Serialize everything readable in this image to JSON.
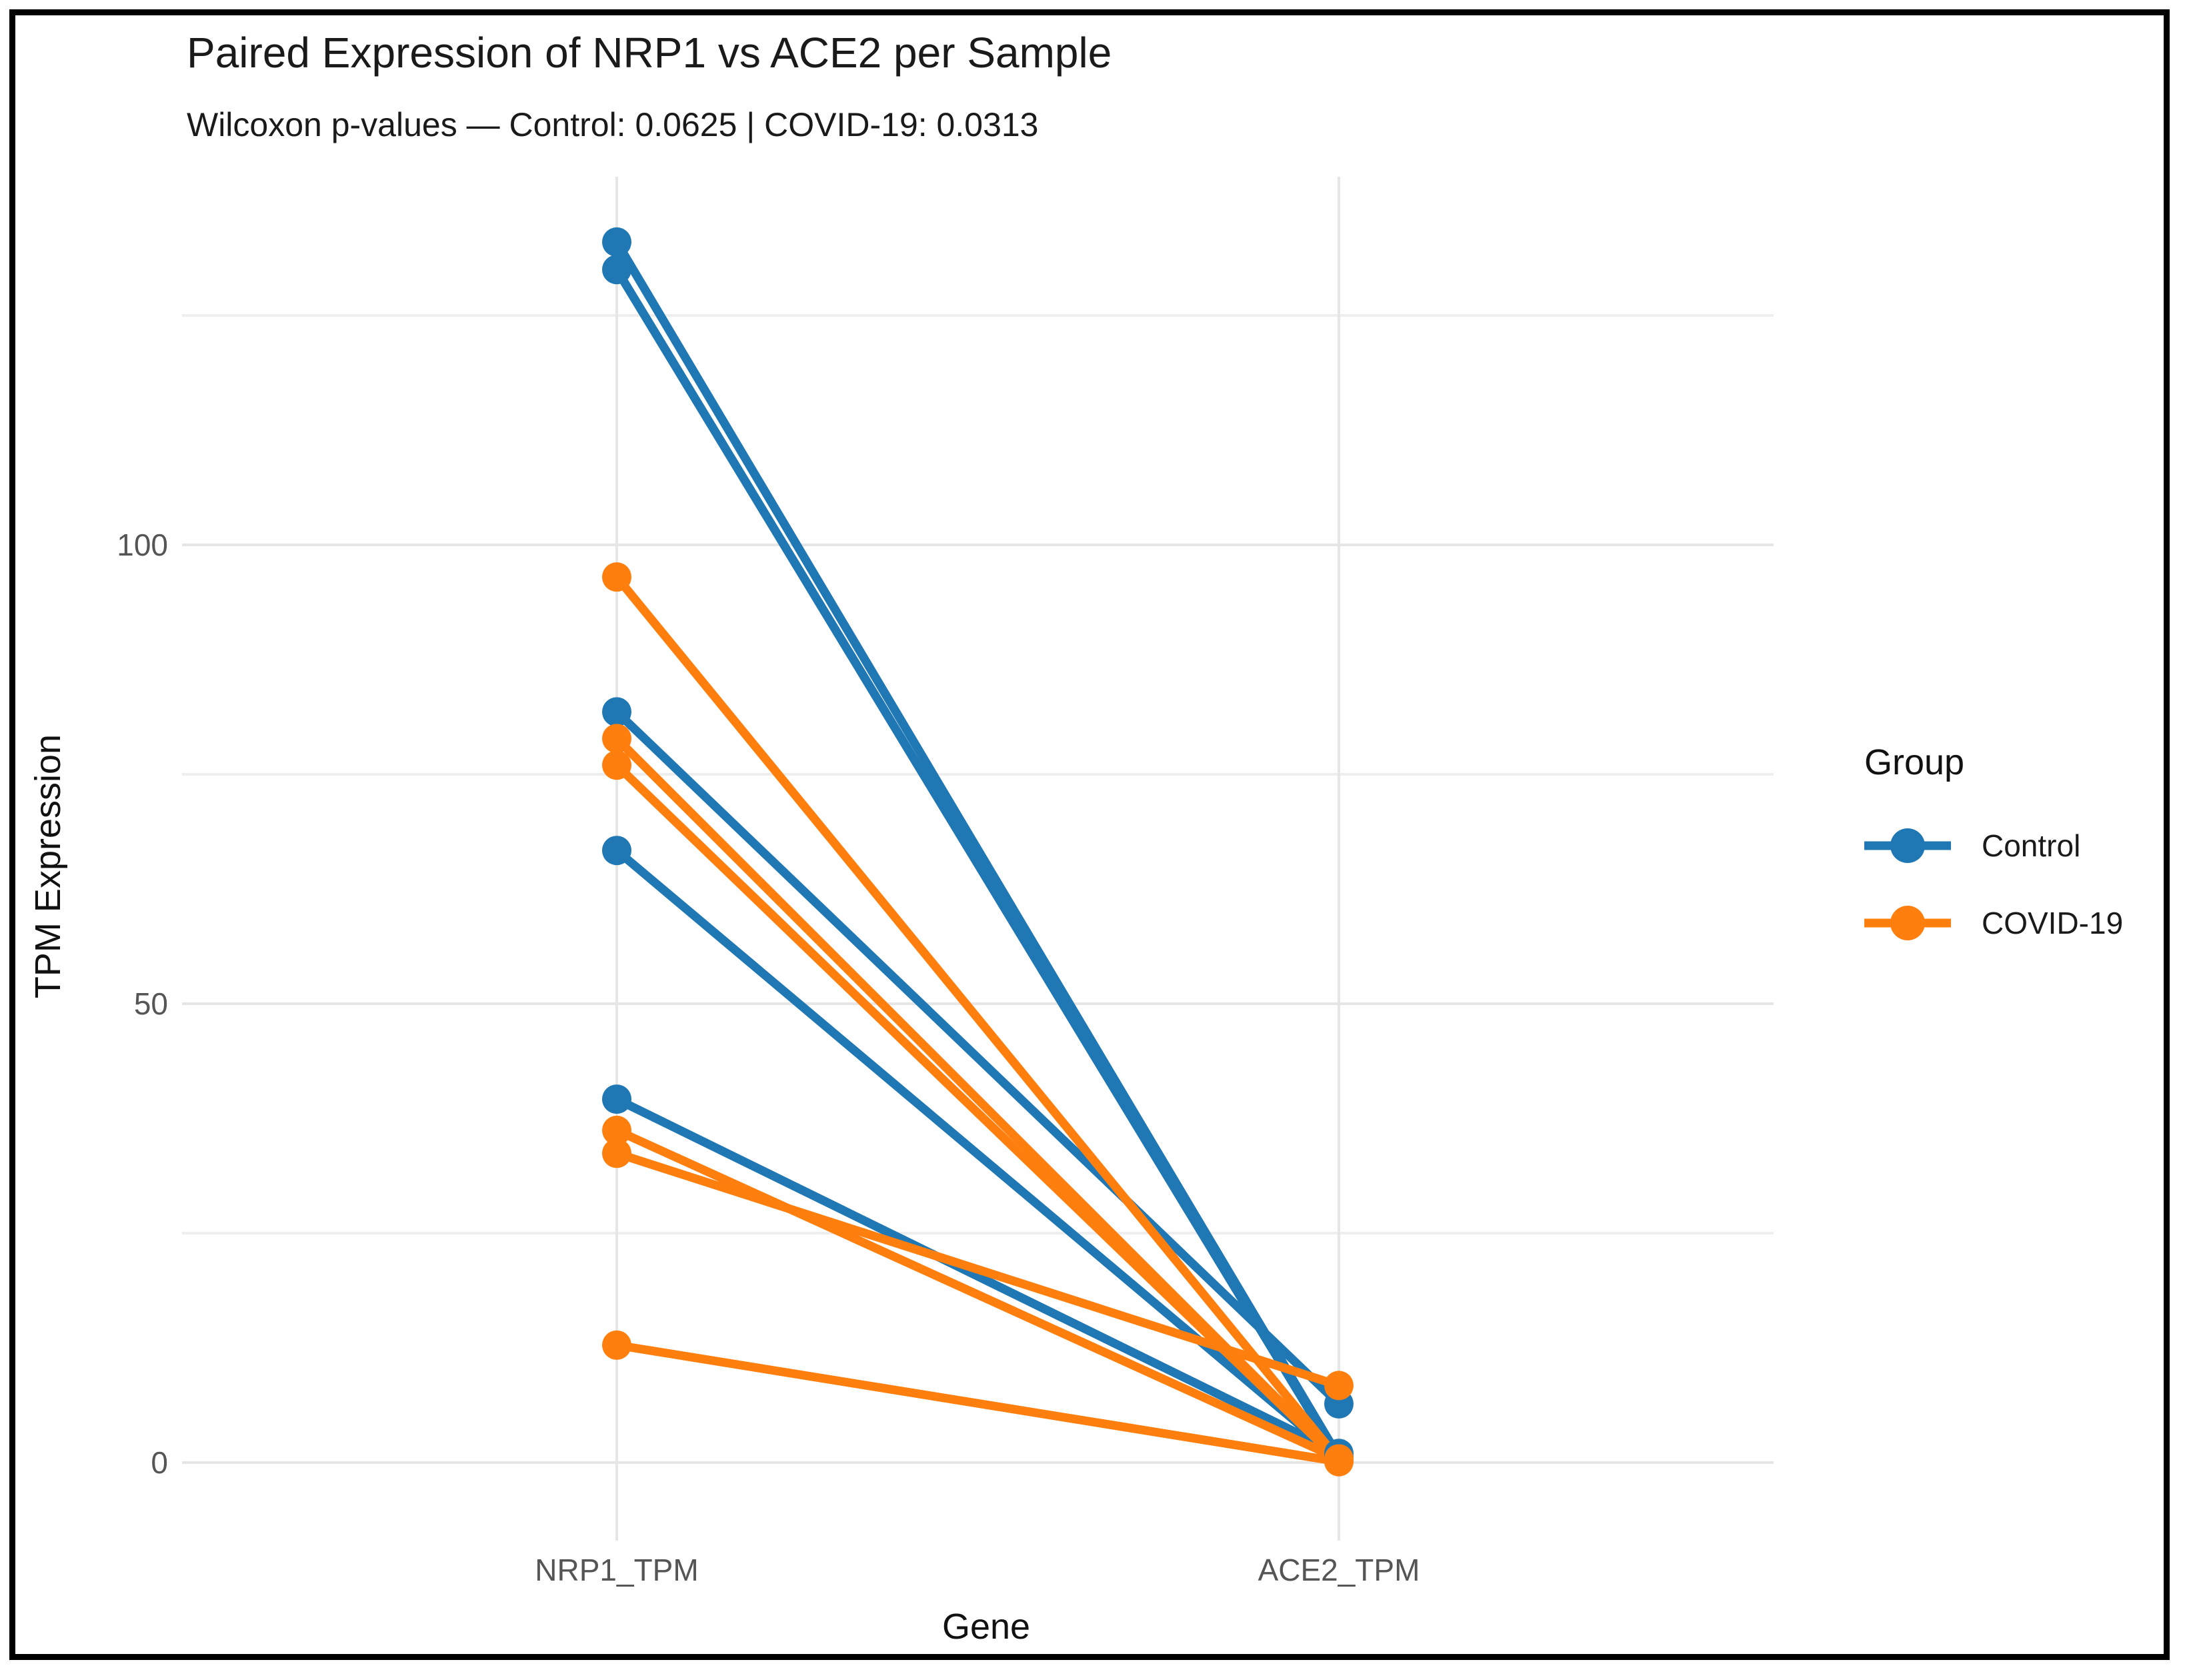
{
  "chart_data": {
    "type": "line",
    "variant": "paired-slope-plot",
    "title": "Paired Expression of NRP1 vs ACE2 per Sample",
    "subtitle": "Wilcoxon p-values — Control: 0.0625 | COVID-19: 0.0313",
    "xlabel": "Gene",
    "ylabel": "TPM Expression",
    "categories": [
      "NRP1_TPM",
      "ACE2_TPM"
    ],
    "y_ticks": [
      0,
      50,
      100
    ],
    "y_minor_gridlines": [
      25,
      75,
      125
    ],
    "ylim": [
      -8.5,
      140
    ],
    "grid": true,
    "colors": {
      "control": "#1f77b4",
      "covid": "#ff7f0e",
      "gridline_major": "#e6e6e6",
      "gridline_minor": "#eeeeee",
      "tick_text": "#555555",
      "text": "#1a1a1a"
    },
    "legend": {
      "title": "Group",
      "position": "right",
      "entries": [
        {
          "label": "Control",
          "color": "#1f77b4"
        },
        {
          "label": "COVID-19",
          "color": "#ff7f0e"
        }
      ]
    },
    "groups": [
      {
        "name": "Control",
        "color": "#1f77b4",
        "wilcoxon_p": 0.0625,
        "pairs": [
          {
            "NRP1_TPM": 133.0,
            "ACE2_TPM": 0.6
          },
          {
            "NRP1_TPM": 130.0,
            "ACE2_TPM": 0.4
          },
          {
            "NRP1_TPM": 81.8,
            "ACE2_TPM": 6.4
          },
          {
            "NRP1_TPM": 66.7,
            "ACE2_TPM": 0.5
          },
          {
            "NRP1_TPM": 39.6,
            "ACE2_TPM": 1.0
          }
        ]
      },
      {
        "name": "COVID-19",
        "color": "#ff7f0e",
        "wilcoxon_p": 0.0313,
        "pairs": [
          {
            "NRP1_TPM": 96.5,
            "ACE2_TPM": 0.3
          },
          {
            "NRP1_TPM": 78.9,
            "ACE2_TPM": 0.25
          },
          {
            "NRP1_TPM": 76.0,
            "ACE2_TPM": 0.2
          },
          {
            "NRP1_TPM": 36.2,
            "ACE2_TPM": 0.4
          },
          {
            "NRP1_TPM": 33.7,
            "ACE2_TPM": 8.4
          },
          {
            "NRP1_TPM": 12.8,
            "ACE2_TPM": 0.1
          }
        ]
      }
    ]
  }
}
